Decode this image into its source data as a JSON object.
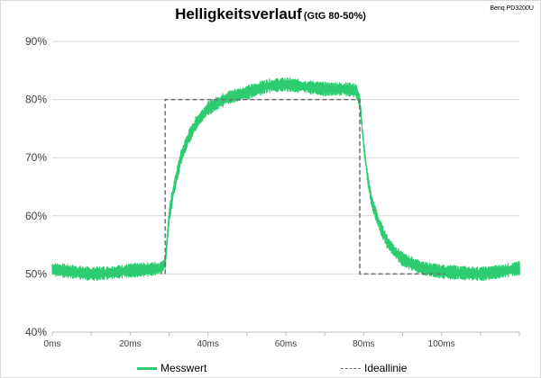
{
  "chart_data": {
    "type": "line",
    "title": "Helligkeitsverlauf",
    "subtitle": "(GtG 80-50%)",
    "model_label": "Benq PD3200U",
    "x_unit_suffix": "ms",
    "xlim": [
      0,
      120
    ],
    "x_ticks": [
      0,
      20,
      40,
      60,
      80,
      100
    ],
    "x_tick_labels": [
      "0ms",
      "20ms",
      "40ms",
      "60ms",
      "80ms",
      "100ms"
    ],
    "ylim": [
      40,
      90
    ],
    "y_ticks": [
      40,
      50,
      60,
      70,
      80,
      90
    ],
    "y_tick_labels": [
      "40%",
      "50%",
      "60%",
      "70%",
      "80%",
      "90%"
    ],
    "grid": "horizontal",
    "legend_position": "bottom",
    "series": [
      {
        "name": "Messwert",
        "color": "#2ecc71",
        "style": "solid",
        "x": [
          0,
          5,
          10,
          15,
          20,
          25,
          28,
          29,
          30,
          31,
          32,
          33,
          35,
          37,
          40,
          45,
          50,
          55,
          60,
          65,
          70,
          75,
          78,
          79,
          80,
          81,
          82,
          84,
          86,
          88,
          90,
          95,
          100,
          105,
          110,
          115,
          120
        ],
        "y": [
          50.8,
          50.4,
          50.0,
          50.2,
          50.6,
          50.8,
          51.0,
          52.0,
          60.0,
          64.0,
          67.0,
          70.0,
          73.5,
          76.0,
          78.5,
          80.3,
          81.2,
          82.3,
          82.6,
          82.2,
          81.8,
          81.8,
          81.6,
          79.5,
          72.0,
          66.5,
          62.5,
          58.5,
          55.5,
          53.8,
          52.5,
          51.0,
          50.4,
          50.2,
          50.0,
          50.4,
          51.0
        ],
        "noise_band": 0.9
      },
      {
        "name": "Ideallinie",
        "color": "#6e6e6e",
        "style": "dashed",
        "x": [
          29,
          29,
          79,
          79,
          101
        ],
        "y": [
          50,
          80,
          80,
          50,
          50
        ]
      }
    ]
  }
}
